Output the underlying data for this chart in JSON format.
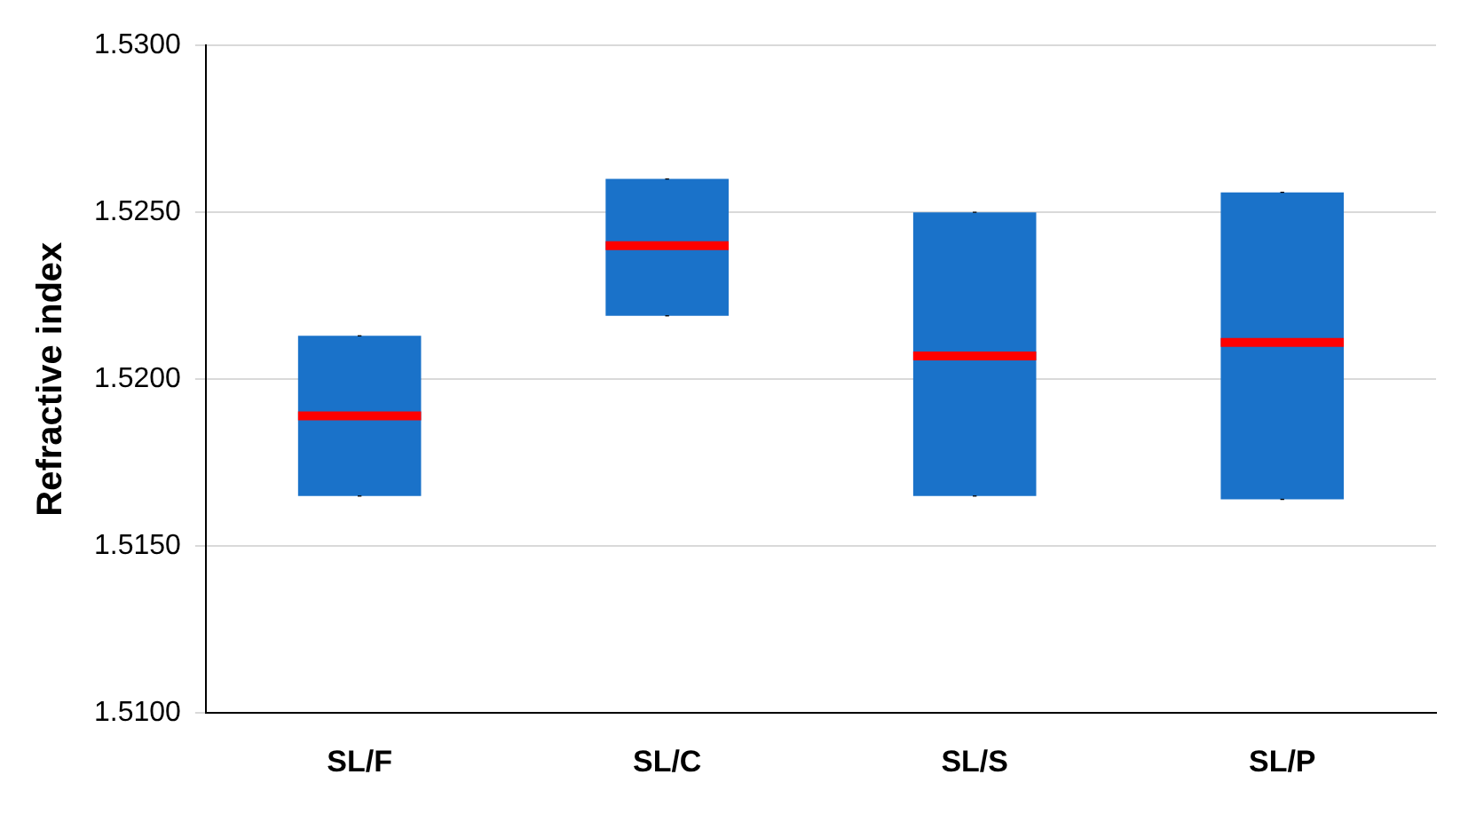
{
  "chart_data": {
    "type": "box",
    "ylabel": "Refractive index",
    "categories": [
      "SL/F",
      "SL/C",
      "SL/S",
      "SL/P"
    ],
    "series": [
      {
        "color": "#1a72c9",
        "boxes": [
          {
            "low": 1.5165,
            "q1": 1.5165,
            "median": 1.5189,
            "q3": 1.5213,
            "high": 1.5213
          },
          {
            "low": 1.5219,
            "q1": 1.5219,
            "median": 1.524,
            "q3": 1.526,
            "high": 1.526
          },
          {
            "low": 1.5165,
            "q1": 1.5165,
            "median": 1.5207,
            "q3": 1.525,
            "high": 1.525
          },
          {
            "low": 1.5164,
            "q1": 1.5164,
            "median": 1.5211,
            "q3": 1.5256,
            "high": 1.5256
          }
        ]
      }
    ],
    "ylim": [
      1.51,
      1.53
    ],
    "yticks": [
      {
        "value": 1.51,
        "label": "1.5100"
      },
      {
        "value": 1.515,
        "label": "1.5150"
      },
      {
        "value": 1.52,
        "label": "1.5200"
      },
      {
        "value": 1.525,
        "label": "1.5250"
      },
      {
        "value": 1.53,
        "label": "1.5300"
      }
    ],
    "grid": "y",
    "legend": false
  }
}
